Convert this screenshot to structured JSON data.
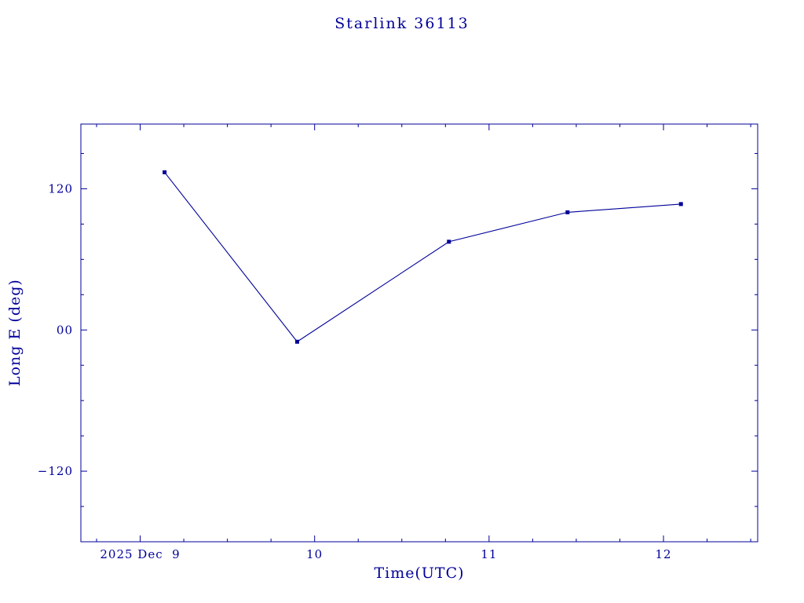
{
  "colors": {
    "background": "#ffffff",
    "accent": "#000099"
  },
  "chart_data": {
    "type": "line",
    "title": "Starlink 36113",
    "xlabel": "Time(UTC)",
    "ylabel": "Long E (deg)",
    "x_unit": "day of December 2025 (UTC)",
    "y_unit": "degrees East longitude",
    "series": [
      {
        "name": "Long E",
        "x": [
          9.14,
          9.9,
          10.77,
          11.45,
          12.1
        ],
        "y": [
          134,
          -10,
          75,
          100,
          107
        ]
      }
    ],
    "xlim": [
      8.66,
      12.54
    ],
    "ylim": [
      -180,
      175
    ],
    "xticks": [
      {
        "value": 9,
        "label": "2025 Dec  9"
      },
      {
        "value": 10,
        "label": "10"
      },
      {
        "value": 11,
        "label": "11"
      },
      {
        "value": 12,
        "label": "12"
      }
    ],
    "yticks": [
      {
        "value": 120,
        "label": "120"
      },
      {
        "value": 0,
        "label": "00"
      },
      {
        "value": -120,
        "label": "−120"
      }
    ],
    "xminor": [
      8.75,
      9.25,
      9.5,
      9.75,
      10.25,
      10.5,
      10.75,
      11.25,
      11.5,
      11.75,
      12.25,
      12.5
    ],
    "yminor": [
      -150,
      -90,
      -60,
      -30,
      30,
      60,
      90,
      150
    ],
    "line_color": "#000099",
    "marker": "square",
    "grid": false,
    "legend": false
  }
}
